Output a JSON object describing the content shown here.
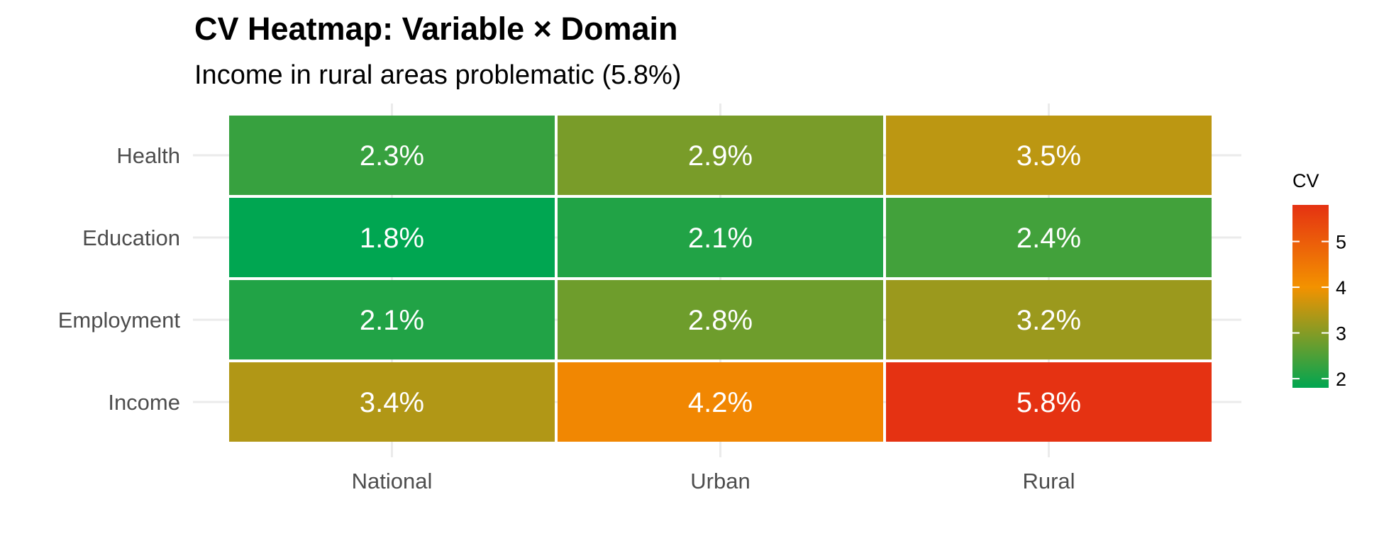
{
  "chart_data": {
    "type": "heatmap",
    "title": "CV Heatmap: Variable × Domain",
    "subtitle": "Income in rural areas problematic (5.8%)",
    "xlabel": "",
    "ylabel": "",
    "x_categories": [
      "National",
      "Urban",
      "Rural"
    ],
    "y_categories": [
      "Health",
      "Education",
      "Employment",
      "Income"
    ],
    "values": [
      [
        2.3,
        2.9,
        3.5
      ],
      [
        1.8,
        2.1,
        2.4
      ],
      [
        2.1,
        2.8,
        3.2
      ],
      [
        3.4,
        4.2,
        5.8
      ]
    ],
    "cell_labels": [
      [
        "2.3%",
        "2.9%",
        "3.5%"
      ],
      [
        "1.8%",
        "2.1%",
        "2.4%"
      ],
      [
        "2.1%",
        "2.8%",
        "3.2%"
      ],
      [
        "3.4%",
        "4.2%",
        "5.8%"
      ]
    ],
    "color_scale": {
      "domain": [
        1.8,
        4.0,
        5.8
      ],
      "colors": [
        "#00a651",
        "#f39200",
        "#e53212"
      ]
    },
    "legend": {
      "title": "CV",
      "position": "right",
      "ticks": [
        2,
        3,
        4,
        5
      ]
    },
    "grid": true
  }
}
